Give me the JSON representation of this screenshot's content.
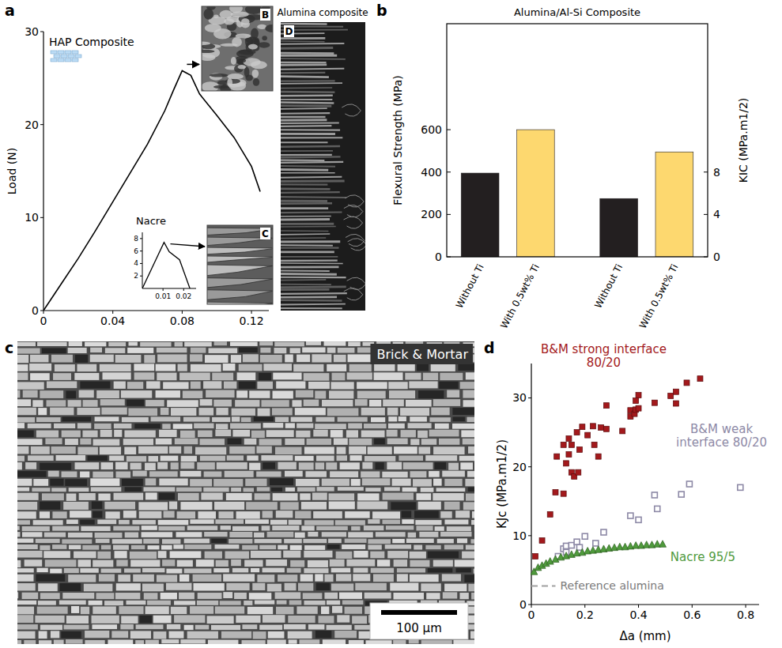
{
  "chart_data": [
    {
      "type": "line",
      "panel": "a",
      "y_label": "Load (N)",
      "annotations": [
        "HAP Composite",
        "B",
        "C",
        "D",
        "Alumina composite"
      ],
      "x": [
        0,
        0.01,
        0.02,
        0.03,
        0.04,
        0.05,
        0.06,
        0.07,
        0.075,
        0.08,
        0.085,
        0.09,
        0.1,
        0.11,
        0.12,
        0.125
      ],
      "series": [
        {
          "values": [
            0,
            2.8,
            5.6,
            8.6,
            11.7,
            14.8,
            17.9,
            21.5,
            23.7,
            25.8,
            25.3,
            23.3,
            21.0,
            18.6,
            15.5,
            12.8
          ],
          "color": "#000000"
        }
      ],
      "xlim": [
        0,
        0.13
      ],
      "ylim": [
        0,
        30
      ],
      "xticks": [
        0,
        0.04,
        0.08,
        0.12
      ],
      "yticks": [
        0,
        10,
        20,
        30
      ]
    },
    {
      "type": "line",
      "title": "Nacre",
      "x": [
        0,
        0.0105,
        0.013,
        0.018,
        0.023
      ],
      "series": [
        {
          "values": [
            0,
            7.4,
            5.9,
            4.6,
            0
          ],
          "color": "#000000"
        }
      ],
      "xlim": [
        0,
        0.026
      ],
      "ylim": [
        0,
        9
      ],
      "xticks": [
        0.01,
        0.02
      ],
      "yticks": [
        2,
        4,
        6,
        8
      ]
    },
    {
      "type": "bar",
      "panel": "b",
      "title": "Alumina/Al-Si Composite",
      "categories": [
        "Without Ti",
        "With 0.5wt% Ti",
        "Without Ti",
        "With 0.5wt% Ti"
      ],
      "colors": [
        "#231f20",
        "#fdd86f",
        "#231f20",
        "#fdd86f"
      ],
      "series": [
        {
          "values": [
            395,
            600,
            null,
            null
          ]
        },
        {
          "values": [
            null,
            null,
            5.5,
            9.9
          ],
          "axis": "y2"
        }
      ],
      "y_label": "Flexural Strength (MPa)",
      "y2_label": "KIC (MPa.m1/2)",
      "ylim": [
        0,
        1100
      ],
      "yticks": [
        0,
        200,
        400,
        600
      ],
      "y2lim": [
        0,
        22
      ],
      "y2ticks": [
        0,
        4,
        8
      ]
    },
    {
      "type": "image",
      "panel": "c",
      "annotations": [
        "Brick & Mortar",
        "100 µm"
      ]
    },
    {
      "type": "scatter",
      "panel": "d",
      "x_label": "Δa (mm)",
      "y_label": "KJc (MPa.m1/2)",
      "xlim": [
        0,
        0.85
      ],
      "ylim": [
        0,
        35
      ],
      "xticks": [
        0,
        0.2,
        0.4,
        0.6,
        0.8
      ],
      "yticks": [
        0,
        10,
        20,
        30
      ],
      "series": [
        {
          "name": "B&M strong interface 80/20",
          "color": "#a3191c",
          "marker": "square",
          "x": [
            0.015,
            0.04,
            0.07,
            0.09,
            0.095,
            0.12,
            0.12,
            0.13,
            0.14,
            0.14,
            0.15,
            0.15,
            0.16,
            0.175,
            0.17,
            0.18,
            0.19,
            0.21,
            0.23,
            0.235,
            0.25,
            0.26,
            0.28,
            0.28,
            0.34,
            0.37,
            0.37,
            0.385,
            0.39,
            0.39,
            0.4,
            0.4,
            0.46,
            0.52,
            0.54,
            0.54,
            0.58,
            0.63
          ],
          "values": [
            7.0,
            9.3,
            13.1,
            16.3,
            21.5,
            16.1,
            23.2,
            20.5,
            21.8,
            24.1,
            23.2,
            19.2,
            18.6,
            19.2,
            25.0,
            22.5,
            25.8,
            24.6,
            25.9,
            23.2,
            21.5,
            25.7,
            28.9,
            25.5,
            25.2,
            27.3,
            28.2,
            27.7,
            28.3,
            29.6,
            30.4,
            28.5,
            29.3,
            30.3,
            29.2,
            30.9,
            32.2,
            32.8
          ]
        },
        {
          "name": "B&M weak interface 80/20",
          "color": "#8d89a6",
          "marker": "open-square",
          "x": [
            0.1,
            0.12,
            0.13,
            0.13,
            0.15,
            0.17,
            0.18,
            0.2,
            0.24,
            0.27,
            0.37,
            0.4,
            0.46,
            0.47,
            0.56,
            0.59,
            0.78
          ],
          "values": [
            7.0,
            8.1,
            8.5,
            7.6,
            8.6,
            9.1,
            8.3,
            9.9,
            8.9,
            10.5,
            12.9,
            12.3,
            15.9,
            13.9,
            16.0,
            17.5,
            17.0
          ]
        },
        {
          "name": "Nacre 95/5",
          "color": "#4f9a3c",
          "marker": "triangle",
          "x": [
            0.01,
            0.025,
            0.04,
            0.055,
            0.07,
            0.09,
            0.11,
            0.13,
            0.15,
            0.17,
            0.19,
            0.21,
            0.23,
            0.25,
            0.27,
            0.29,
            0.31,
            0.33,
            0.35,
            0.37,
            0.39,
            0.41,
            0.43,
            0.45,
            0.47,
            0.49
          ],
          "values": [
            4.8,
            5.4,
            5.7,
            6.0,
            6.3,
            6.6,
            6.9,
            7.1,
            7.3,
            7.5,
            7.6,
            7.8,
            7.9,
            8.0,
            8.1,
            8.2,
            8.3,
            8.4,
            8.4,
            8.5,
            8.6,
            8.6,
            8.7,
            8.7,
            8.8,
            8.8
          ]
        },
        {
          "name": "Reference alumina",
          "type": "line",
          "line_style": "dashed",
          "color": "#a0a0a0",
          "x": [
            0,
            0.09
          ],
          "values": [
            2.7,
            2.7
          ]
        }
      ]
    }
  ]
}
